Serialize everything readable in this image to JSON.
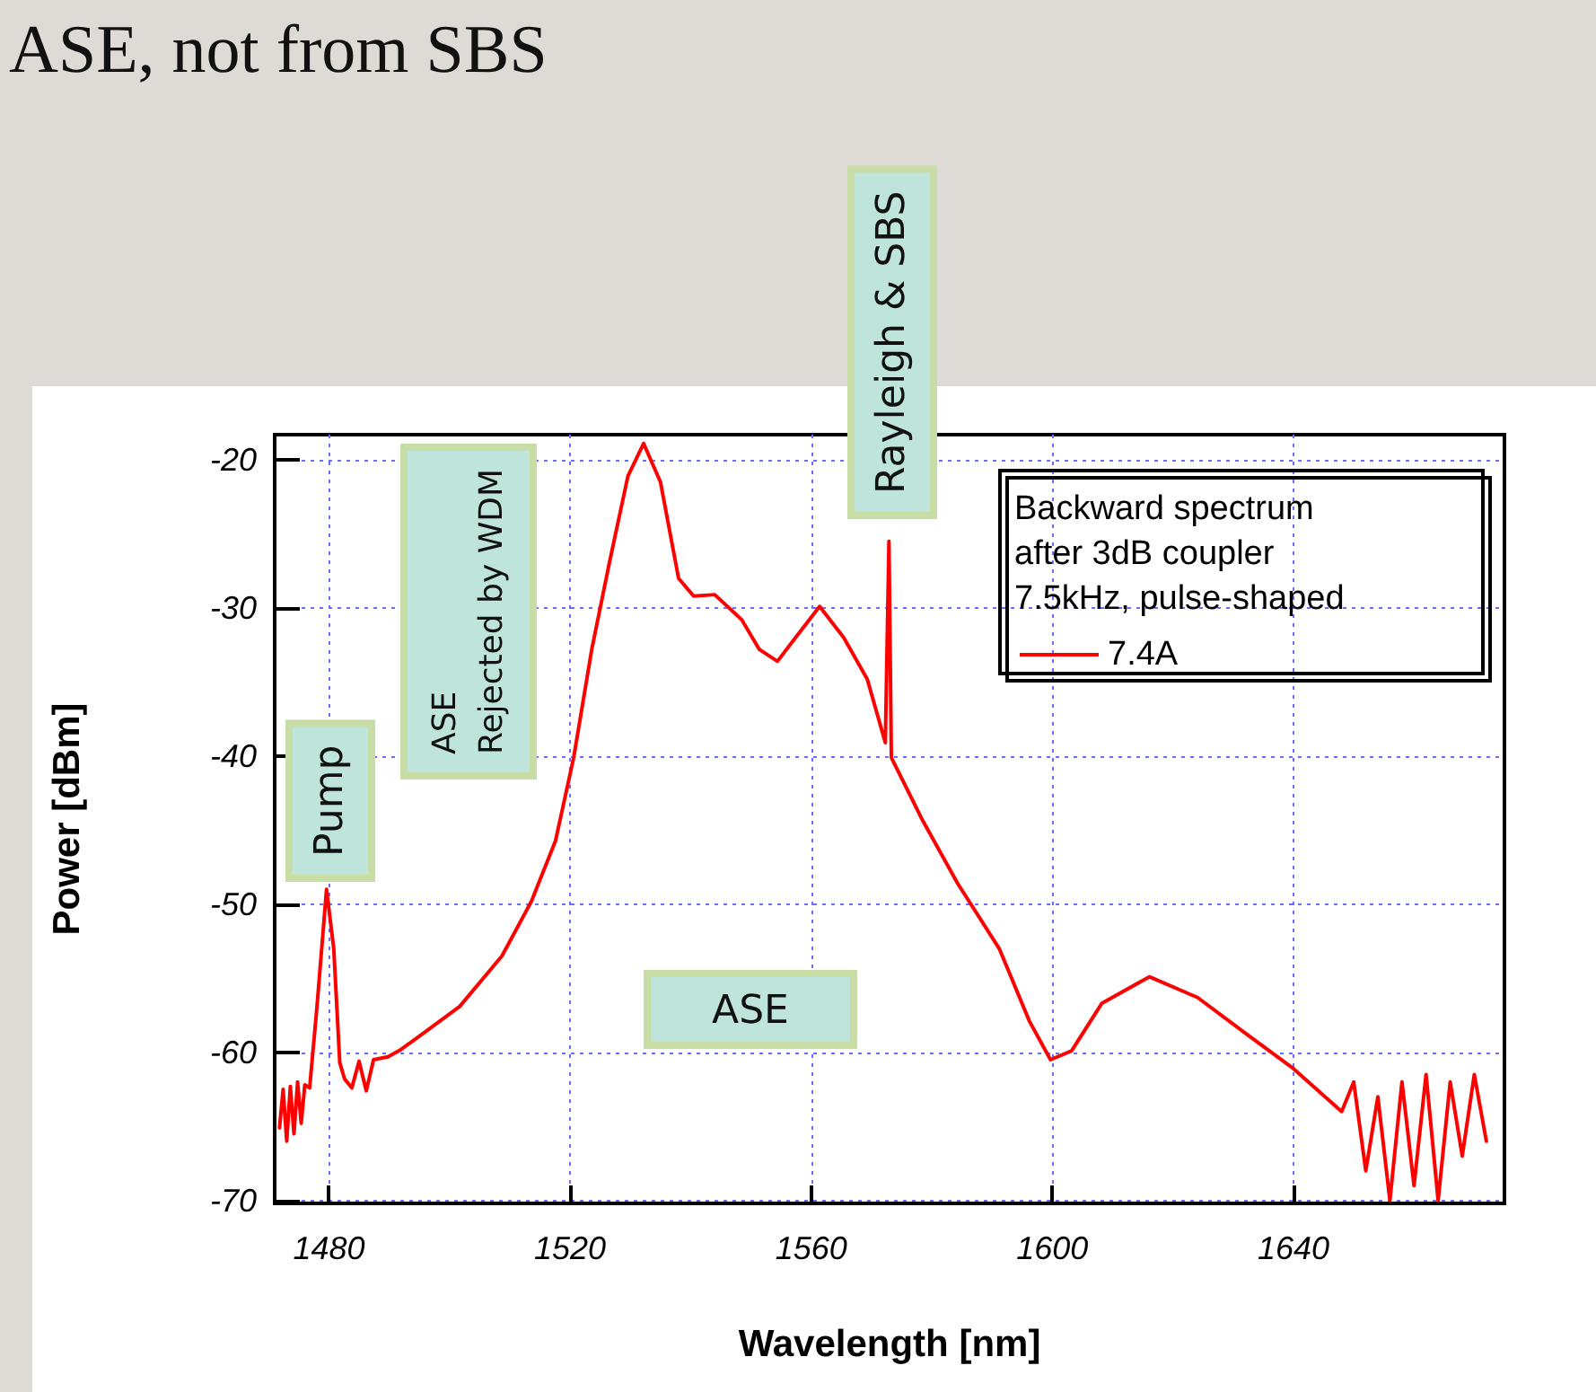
{
  "chart_data": {
    "type": "line",
    "xlabel": "Wavelength [nm]",
    "ylabel": "Power [dBm]",
    "legend_title": "Backward spectrum\nafter 3dB coupler\n7.5kHz, pulse-shaped",
    "legend": "top right",
    "grid": true,
    "marker": "none",
    "line_style": "solid",
    "xlim": [
      1471,
      1675
    ],
    "xticks": [
      1480,
      1520,
      1560,
      1600,
      1640
    ],
    "ylim": [
      -70.2,
      -18.3
    ],
    "yticks": [
      -20,
      -30,
      -40,
      -50,
      -60,
      -70
    ],
    "annotations": [
      "ASE, not from SBS",
      "Pump",
      "ASE\nRejected by WDM",
      "Rayleigh & SBS",
      "ASE"
    ],
    "series": [
      {
        "name": "7.4A",
        "color": "#ff0000",
        "x": [
          1471.8,
          1472.4,
          1473.0,
          1473.6,
          1474.2,
          1474.8,
          1475.4,
          1476.0,
          1476.8,
          1478.0,
          1479.6,
          1480.8,
          1481.8,
          1482.6,
          1483.8,
          1485.0,
          1486.2,
          1487.4,
          1489.8,
          1492.0,
          1495.7,
          1501.7,
          1508.7,
          1513.6,
          1517.6,
          1520.6,
          1523.6,
          1526.6,
          1529.6,
          1532.2,
          1535.0,
          1538.0,
          1540.5,
          1544.0,
          1548.5,
          1551.4,
          1554.4,
          1557.4,
          1561.4,
          1565.4,
          1569.3,
          1572.3,
          1572.9,
          1573.3,
          1578.3,
          1584.3,
          1591.2,
          1596.2,
          1599.7,
          1603.2,
          1608.2,
          1616.1,
          1624.1,
          1632.0,
          1640.0,
          1648.0,
          1650.0,
          1652.0,
          1654.0,
          1656.0,
          1658.0,
          1660.0,
          1662.0,
          1664.0,
          1666.0,
          1668.0,
          1670.0,
          1672.0
        ],
        "values": [
          -65.1,
          -62.5,
          -66.0,
          -62.3,
          -65.5,
          -62.0,
          -64.8,
          -62.2,
          -62.4,
          -57.0,
          -49.0,
          -53.0,
          -60.7,
          -61.8,
          -62.4,
          -60.6,
          -62.6,
          -60.5,
          -60.3,
          -59.8,
          -58.7,
          -56.9,
          -53.5,
          -49.8,
          -45.7,
          -40.1,
          -32.8,
          -26.8,
          -21.1,
          -18.9,
          -21.5,
          -28.0,
          -29.2,
          -29.1,
          -30.8,
          -32.8,
          -33.6,
          -32.0,
          -29.9,
          -32.0,
          -34.8,
          -39.1,
          -25.5,
          -40.1,
          -44.2,
          -48.6,
          -53.0,
          -57.9,
          -60.5,
          -59.9,
          -56.7,
          -54.9,
          -56.3,
          -58.7,
          -61.1,
          -64.0,
          -62.0,
          -68.0,
          -63.0,
          -70.0,
          -62.0,
          -69.0,
          -61.5,
          -70.0,
          -62.0,
          -67.0,
          -61.5,
          -66.0
        ]
      }
    ]
  }
}
